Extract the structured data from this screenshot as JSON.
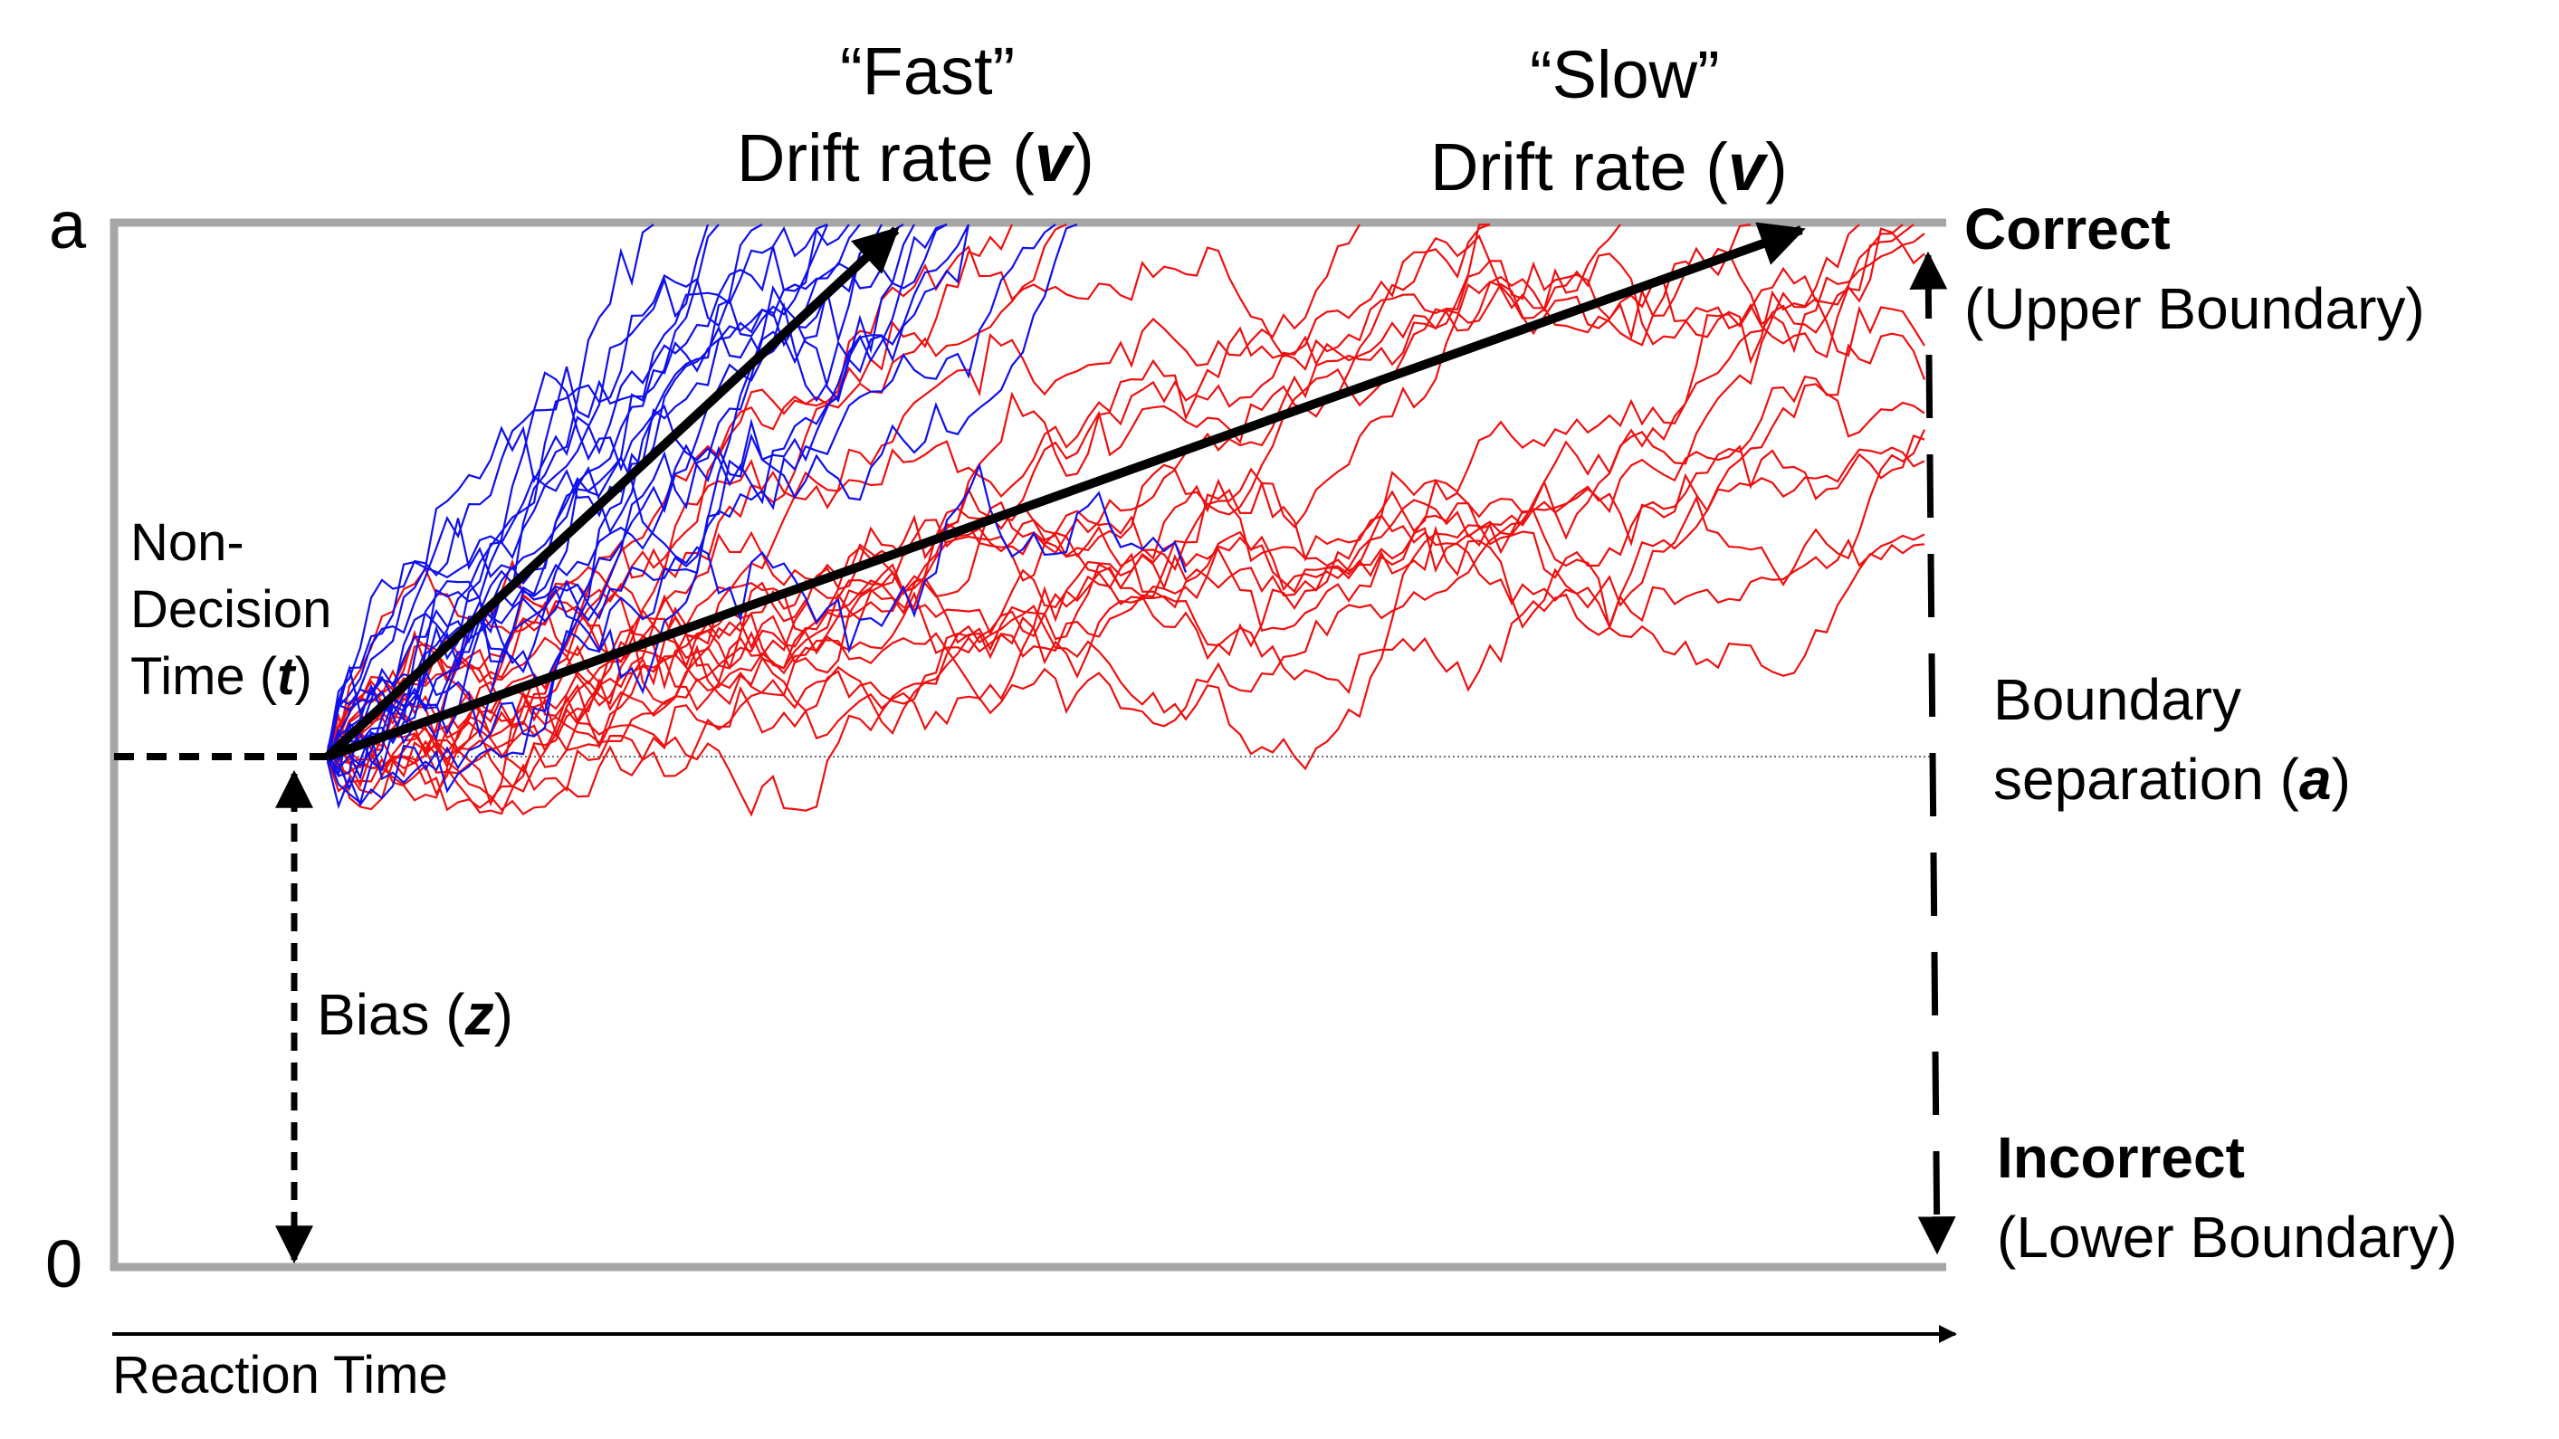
{
  "axis": {
    "top_tick": "a",
    "bottom_tick": "0",
    "x_label": "Reaction Time"
  },
  "fast": {
    "line1": "“Fast”",
    "line2_prefix": "Drift rate (",
    "line2_var": "v",
    "line2_suffix": ")"
  },
  "slow": {
    "line1": "“Slow”",
    "line2_prefix": "Drift rate (",
    "line2_var": "v",
    "line2_suffix": ")"
  },
  "upper": {
    "title": "Correct",
    "sub": "(Upper Boundary)"
  },
  "lower": {
    "title": "Incorrect",
    "sub": "(Lower Boundary)"
  },
  "boundary": {
    "line1": "Boundary",
    "line2_prefix": "separation (",
    "line2_var": "a",
    "line2_suffix": ")"
  },
  "nondecision": {
    "line1": "Non-",
    "line2": "Decision",
    "line3_prefix": "Time (",
    "line3_var": "t",
    "line3_suffix": ")"
  },
  "bias": {
    "prefix": "Bias (",
    "var": "z",
    "suffix": ")"
  },
  "colors": {
    "fast_paths": "#1010ee",
    "slow_paths": "#ee1010",
    "boundary_lines": "#a6a6a6",
    "arrows": "#000000"
  }
}
